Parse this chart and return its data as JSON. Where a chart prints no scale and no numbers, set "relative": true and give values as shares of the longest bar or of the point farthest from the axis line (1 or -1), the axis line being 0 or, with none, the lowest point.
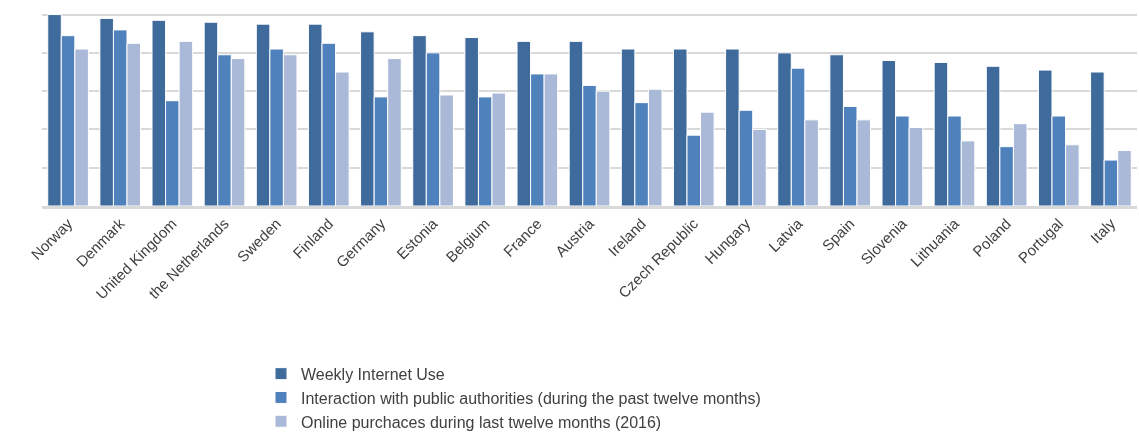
{
  "chart_data": {
    "type": "bar",
    "relative": true,
    "grid": "y",
    "legend": "bottom",
    "categories": [
      "Norway",
      "Denmark",
      "United Kingdom",
      "the Netherlands",
      "Sweden",
      "Finland",
      "Germany",
      "Estonia",
      "Belgium",
      "France",
      "Austria",
      "Ireland",
      "Czech Republic",
      "Hungary",
      "Latvia",
      "Spain",
      "Slovenia",
      "Lithuania",
      "Poland",
      "Portugal",
      "Italy"
    ],
    "series": [
      {
        "name": "Weekly Internet Use",
        "color": "#3f6a9c",
        "values": [
          1.0,
          0.98,
          0.97,
          0.96,
          0.95,
          0.95,
          0.91,
          0.89,
          0.88,
          0.86,
          0.86,
          0.82,
          0.82,
          0.82,
          0.8,
          0.79,
          0.76,
          0.75,
          0.73,
          0.71,
          0.7
        ]
      },
      {
        "name": "Interaction with public authorities (during the past twelve months)",
        "color": "#4f81bd",
        "values": [
          0.89,
          0.92,
          0.55,
          0.79,
          0.82,
          0.85,
          0.57,
          0.8,
          0.57,
          0.69,
          0.63,
          0.54,
          0.37,
          0.5,
          0.72,
          0.52,
          0.47,
          0.47,
          0.31,
          0.47,
          0.24
        ]
      },
      {
        "name": "Online purchaces during last twelve months (2016)",
        "color": "#aab9d7",
        "values": [
          0.82,
          0.85,
          0.86,
          0.77,
          0.79,
          0.7,
          0.77,
          0.58,
          0.59,
          0.69,
          0.6,
          0.61,
          0.49,
          0.4,
          0.45,
          0.45,
          0.41,
          0.34,
          0.43,
          0.32,
          0.29
        ]
      }
    ]
  }
}
